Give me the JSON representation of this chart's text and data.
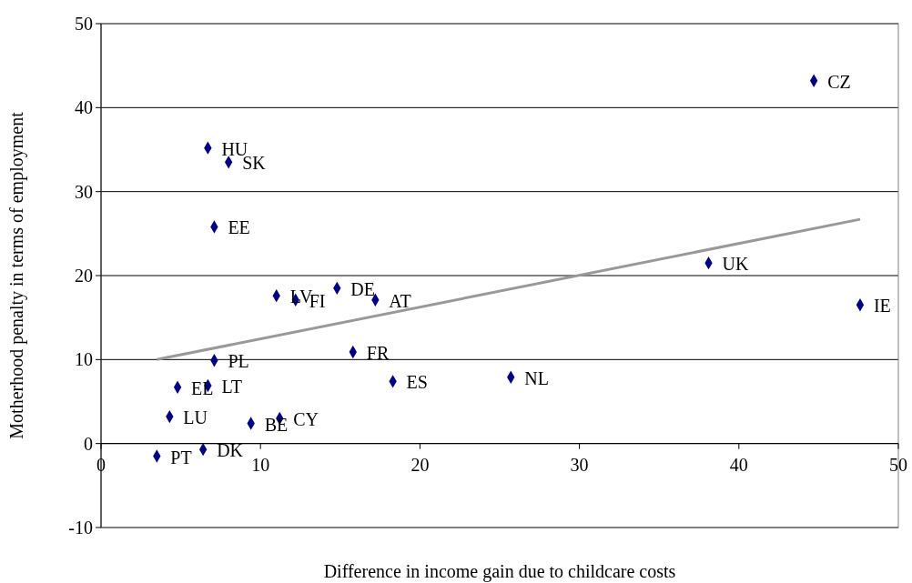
{
  "chart_data": {
    "type": "scatter",
    "xlabel": "Difference in income gain due to childcare costs",
    "ylabel": "Motherhood penalty in terms of employment",
    "xlim": [
      0,
      50
    ],
    "xticks": [
      0,
      10,
      20,
      30,
      40,
      50
    ],
    "ylim": [
      -10,
      50
    ],
    "yticks": [
      -10,
      0,
      10,
      20,
      30,
      40,
      50
    ],
    "grid": "y",
    "series": [
      {
        "color": "#000080",
        "marker": "diamond",
        "x": [
          44.7,
          6.7,
          8.0,
          7.1,
          38.1,
          11.0,
          12.2,
          14.8,
          17.2,
          47.6,
          15.8,
          7.1,
          18.3,
          25.7,
          4.8,
          6.7,
          4.3,
          9.4,
          11.2,
          3.5,
          6.4
        ],
        "values": [
          43.2,
          35.2,
          33.5,
          25.8,
          21.5,
          17.6,
          17.1,
          18.5,
          17.1,
          16.5,
          10.9,
          9.9,
          7.4,
          7.9,
          6.7,
          6.9,
          3.2,
          2.4,
          3.0,
          -1.5,
          -0.7
        ]
      },
      {
        "type": "line",
        "color": "#999999",
        "marker": "none",
        "x": [
          3.5,
          47.6
        ],
        "values": [
          10.0,
          26.7
        ]
      }
    ],
    "annotations": [
      {
        "text": "CZ",
        "x": 44.7,
        "y": 43.2
      },
      {
        "text": "HU",
        "x": 6.7,
        "y": 35.2
      },
      {
        "text": "SK",
        "x": 8.0,
        "y": 33.5
      },
      {
        "text": "EE",
        "x": 7.1,
        "y": 25.8
      },
      {
        "text": "UK",
        "x": 38.1,
        "y": 21.5
      },
      {
        "text": "LV",
        "x": 11.0,
        "y": 17.6
      },
      {
        "text": "FI",
        "x": 12.2,
        "y": 17.1
      },
      {
        "text": "DE",
        "x": 14.8,
        "y": 18.5
      },
      {
        "text": "AT",
        "x": 17.2,
        "y": 17.1
      },
      {
        "text": "IE",
        "x": 47.6,
        "y": 16.5
      },
      {
        "text": "FR",
        "x": 15.8,
        "y": 10.9
      },
      {
        "text": "PL",
        "x": 7.1,
        "y": 9.9
      },
      {
        "text": "ES",
        "x": 18.3,
        "y": 7.4
      },
      {
        "text": "NL",
        "x": 25.7,
        "y": 7.9
      },
      {
        "text": "EL",
        "x": 4.8,
        "y": 6.7
      },
      {
        "text": "LT",
        "x": 6.7,
        "y": 6.9
      },
      {
        "text": "LU",
        "x": 4.3,
        "y": 3.2
      },
      {
        "text": "BE",
        "x": 9.4,
        "y": 2.4
      },
      {
        "text": "CY",
        "x": 11.2,
        "y": 3.0
      },
      {
        "text": "PT",
        "x": 3.5,
        "y": -1.5
      },
      {
        "text": "DK",
        "x": 6.4,
        "y": -0.7
      }
    ]
  }
}
